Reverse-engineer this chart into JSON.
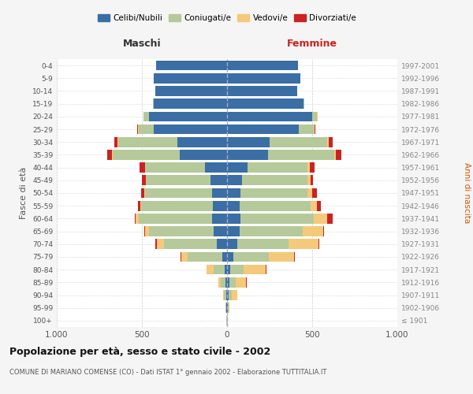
{
  "age_groups": [
    "100+",
    "95-99",
    "90-94",
    "85-89",
    "80-84",
    "75-79",
    "70-74",
    "65-69",
    "60-64",
    "55-59",
    "50-54",
    "45-49",
    "40-44",
    "35-39",
    "30-34",
    "25-29",
    "20-24",
    "15-19",
    "10-14",
    "5-9",
    "0-4"
  ],
  "birth_years": [
    "≤ 1901",
    "1902-1906",
    "1907-1911",
    "1912-1916",
    "1917-1921",
    "1922-1926",
    "1927-1931",
    "1932-1936",
    "1937-1941",
    "1942-1946",
    "1947-1951",
    "1952-1956",
    "1957-1961",
    "1962-1966",
    "1967-1971",
    "1972-1976",
    "1977-1981",
    "1982-1986",
    "1987-1991",
    "1992-1996",
    "1997-2001"
  ],
  "maschi_celibi": [
    2,
    3,
    5,
    8,
    15,
    30,
    60,
    80,
    90,
    85,
    90,
    95,
    130,
    280,
    290,
    430,
    460,
    430,
    420,
    430,
    415
  ],
  "maschi_coniugati": [
    2,
    4,
    15,
    30,
    65,
    200,
    310,
    380,
    430,
    420,
    390,
    380,
    350,
    390,
    350,
    90,
    30,
    5,
    3,
    2,
    2
  ],
  "maschi_vedovi": [
    0,
    1,
    5,
    15,
    40,
    40,
    40,
    20,
    15,
    5,
    4,
    3,
    3,
    5,
    3,
    2,
    1,
    0,
    0,
    0,
    0
  ],
  "maschi_divorziati": [
    0,
    0,
    0,
    0,
    1,
    2,
    10,
    5,
    5,
    15,
    20,
    20,
    30,
    30,
    20,
    5,
    2,
    1,
    0,
    0,
    0
  ],
  "femmine_celibi": [
    2,
    3,
    8,
    12,
    18,
    35,
    60,
    75,
    80,
    75,
    80,
    90,
    120,
    240,
    250,
    420,
    500,
    450,
    410,
    430,
    415
  ],
  "femmine_coniugati": [
    2,
    5,
    20,
    40,
    80,
    210,
    300,
    370,
    430,
    415,
    390,
    380,
    350,
    390,
    340,
    90,
    30,
    5,
    3,
    2,
    2
  ],
  "femmine_vedovi": [
    1,
    5,
    30,
    60,
    130,
    150,
    175,
    120,
    80,
    40,
    30,
    20,
    15,
    10,
    5,
    3,
    2,
    0,
    0,
    0,
    0
  ],
  "femmine_divorziati": [
    0,
    0,
    1,
    2,
    3,
    3,
    5,
    5,
    30,
    20,
    30,
    15,
    30,
    30,
    25,
    5,
    2,
    1,
    0,
    0,
    0
  ],
  "color_celibi": "#3A6EA5",
  "color_coniugati": "#B5C99A",
  "color_vedovi": "#F5C97A",
  "color_divorziati": "#CC2222",
  "xlim": 1000,
  "title": "Popolazione per età, sesso e stato civile - 2002",
  "subtitle": "COMUNE DI MARIANO COMENSE (CO) - Dati ISTAT 1° gennaio 2002 - Elaborazione TUTTITALIA.IT",
  "ylabel_left": "Fasce di età",
  "ylabel_right": "Anni di nascita",
  "xlabel_left": "Maschi",
  "xlabel_right": "Femmine",
  "bg_color": "#f5f5f5",
  "plot_bg_color": "#ffffff"
}
